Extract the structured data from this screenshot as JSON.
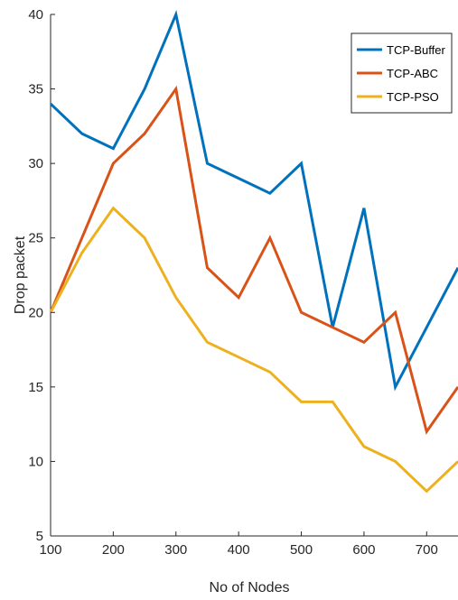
{
  "chart_data": {
    "type": "line",
    "title": "",
    "xlabel": "No of Nodes",
    "ylabel": "Drop packet",
    "xlim": [
      100,
      750
    ],
    "ylim": [
      5,
      40
    ],
    "x_ticks": [
      100,
      200,
      300,
      400,
      500,
      600,
      700
    ],
    "y_ticks": [
      5,
      10,
      15,
      20,
      25,
      30,
      35,
      40
    ],
    "x": [
      100,
      150,
      200,
      250,
      300,
      350,
      400,
      450,
      500,
      550,
      600,
      650,
      700,
      750
    ],
    "series": [
      {
        "name": "TCP-Buffer",
        "color": "#0072BD",
        "values": [
          34,
          32,
          31,
          35,
          40,
          30,
          29,
          28,
          30,
          19,
          27,
          15,
          19,
          23
        ]
      },
      {
        "name": "TCP-ABC",
        "color": "#D95319",
        "values": [
          20,
          25,
          30,
          32,
          35,
          23,
          21,
          25,
          20,
          19,
          18,
          20,
          12,
          15
        ]
      },
      {
        "name": "TCP-PSO",
        "color": "#EDB120",
        "values": [
          20,
          24,
          27,
          25,
          21,
          18,
          17,
          16,
          14,
          14,
          11,
          10,
          8,
          10
        ]
      }
    ],
    "grid": false,
    "legend_position": "top-right"
  }
}
